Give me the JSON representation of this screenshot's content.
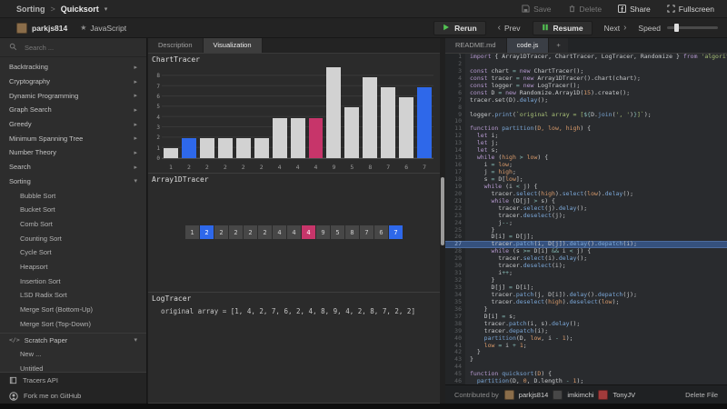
{
  "icons": {
    "caret_down": "▾",
    "chevron_right": "▸",
    "star": "★",
    "code_glyph": "</>",
    "plus": "+",
    "prev_chevron": "‹",
    "next_chevron": "›",
    "breadcrumb_sep": ">"
  },
  "header": {
    "breadcrumb": {
      "section": "Sorting",
      "sep": ">",
      "page": "Quicksort"
    },
    "actions": [
      {
        "label": "Save",
        "icon": "save",
        "disabled": true
      },
      {
        "label": "Delete",
        "icon": "trash",
        "disabled": true
      },
      {
        "label": "Share",
        "icon": "share",
        "disabled": false
      },
      {
        "label": "Fullscreen",
        "icon": "fullscreen",
        "disabled": false
      }
    ]
  },
  "toolbar": {
    "user": "parkjs814",
    "language": "JavaScript",
    "rerun": "Rerun",
    "prev": "Prev",
    "resume": "Resume",
    "next": "Next",
    "speed_label": "Speed"
  },
  "sidebar": {
    "search_placeholder": "Search ...",
    "sections": [
      {
        "label": "Backtracking",
        "expanded": false,
        "items": []
      },
      {
        "label": "Cryptography",
        "expanded": false,
        "items": []
      },
      {
        "label": "Dynamic Programming",
        "expanded": false,
        "items": []
      },
      {
        "label": "Graph Search",
        "expanded": false,
        "items": []
      },
      {
        "label": "Greedy",
        "expanded": false,
        "items": []
      },
      {
        "label": "Minimum Spanning Tree",
        "expanded": false,
        "items": []
      },
      {
        "label": "Number Theory",
        "expanded": false,
        "items": []
      },
      {
        "label": "Search",
        "expanded": false,
        "items": []
      },
      {
        "label": "Sorting",
        "expanded": true,
        "items": [
          "Bubble Sort",
          "Bucket Sort",
          "Comb Sort",
          "Counting Sort",
          "Cycle Sort",
          "Heapsort",
          "Insertion Sort",
          "LSD Radix Sort",
          "Merge Sort (Bottom-Up)",
          "Merge Sort (Top-Down)"
        ]
      },
      {
        "label": "Scratch Paper",
        "expanded": true,
        "icon": "code",
        "items": [
          "New ...",
          "Untitled"
        ]
      }
    ],
    "footer": [
      {
        "label": "Tracers API",
        "icon": "book"
      },
      {
        "label": "Fork me on GitHub",
        "icon": "github"
      }
    ]
  },
  "main": {
    "tabs": [
      {
        "label": "Description",
        "active": false
      },
      {
        "label": "Visualization",
        "active": true
      }
    ],
    "array": {
      "title": "Array1DTracer"
    },
    "log": {
      "title": "LogTracer",
      "text": "original array = [1, 4, 2, 7, 6, 2, 4, 8, 9, 4, 2, 8, 7, 2, 2]"
    }
  },
  "chart_data": {
    "type": "bar",
    "title": "ChartTracer",
    "categories": [
      "1",
      "2",
      "2",
      "2",
      "2",
      "2",
      "4",
      "4",
      "4",
      "9",
      "5",
      "8",
      "7",
      "6",
      "7"
    ],
    "values": [
      1,
      2,
      2,
      2,
      2,
      2,
      4,
      4,
      4,
      9,
      5,
      8,
      7,
      6,
      7
    ],
    "xlabel": "",
    "ylabel": "",
    "ylim": [
      0,
      9
    ],
    "yticks": [
      0,
      1,
      2,
      3,
      4,
      5,
      6,
      7,
      8
    ],
    "grid": true,
    "legend": false,
    "selected_indices": [
      1,
      14
    ],
    "patched_indices": [
      8
    ],
    "colors": {
      "default": "#d2d2d2",
      "selected": "#2e68ea",
      "patched": "#c7356a"
    }
  },
  "editor": {
    "tabs": [
      {
        "label": "README.md",
        "active": false
      },
      {
        "label": "code.js",
        "active": true
      }
    ],
    "highlight_line": 27,
    "lines": [
      [
        [
          "k",
          "import "
        ],
        [
          "p",
          "{ Array1DTracer, ChartTracer, LogTracer, Randomize } "
        ],
        [
          "k",
          "from "
        ],
        [
          "s",
          "'algorithm-visualizer'"
        ],
        [
          "p",
          ";"
        ]
      ],
      [],
      [
        [
          "k",
          "const "
        ],
        [
          "p",
          "chart "
        ],
        [
          "o",
          "= "
        ],
        [
          "k",
          "new "
        ],
        [
          "p",
          "ChartTracer();"
        ]
      ],
      [
        [
          "k",
          "const "
        ],
        [
          "p",
          "tracer "
        ],
        [
          "o",
          "= "
        ],
        [
          "k",
          "new "
        ],
        [
          "p",
          "Array1DTracer().chart(chart);"
        ]
      ],
      [
        [
          "k",
          "const "
        ],
        [
          "p",
          "logger "
        ],
        [
          "o",
          "= "
        ],
        [
          "k",
          "new "
        ],
        [
          "p",
          "LogTracer();"
        ]
      ],
      [
        [
          "k",
          "const "
        ],
        [
          "p",
          "D "
        ],
        [
          "o",
          "= "
        ],
        [
          "k",
          "new "
        ],
        [
          "p",
          "Randomize.Array1D("
        ],
        [
          "n",
          "15"
        ],
        [
          "p",
          ").create();"
        ]
      ],
      [
        [
          "p",
          "tracer.set(D)."
        ],
        [
          "f",
          "delay"
        ],
        [
          "p",
          "();"
        ]
      ],
      [],
      [
        [
          "p",
          "logger."
        ],
        [
          "f",
          "print"
        ],
        [
          "p",
          "("
        ],
        [
          "s",
          "`original array = ["
        ],
        [
          "o",
          "${"
        ],
        [
          "p",
          "D."
        ],
        [
          "f",
          "join"
        ],
        [
          "p",
          "("
        ],
        [
          "s",
          "', '"
        ],
        [
          "p",
          ")"
        ],
        [
          "o",
          "}"
        ],
        [
          "s",
          "]`"
        ],
        [
          "p",
          ");"
        ]
      ],
      [],
      [
        [
          "k",
          "function "
        ],
        [
          "f",
          "partition"
        ],
        [
          "p",
          "("
        ],
        [
          "n",
          "D, low, high"
        ],
        [
          "p",
          ") {"
        ]
      ],
      [
        [
          "p",
          "  "
        ],
        [
          "k",
          "let "
        ],
        [
          "p",
          "i;"
        ]
      ],
      [
        [
          "p",
          "  "
        ],
        [
          "k",
          "let "
        ],
        [
          "p",
          "j;"
        ]
      ],
      [
        [
          "p",
          "  "
        ],
        [
          "k",
          "let "
        ],
        [
          "p",
          "s;"
        ]
      ],
      [
        [
          "p",
          "  "
        ],
        [
          "k",
          "while "
        ],
        [
          "p",
          "("
        ],
        [
          "n",
          "high"
        ],
        [
          "o",
          " > "
        ],
        [
          "n",
          "low"
        ],
        [
          "p",
          ") {"
        ]
      ],
      [
        [
          "p",
          "    i "
        ],
        [
          "o",
          "= "
        ],
        [
          "n",
          "low"
        ],
        [
          "p",
          ";"
        ]
      ],
      [
        [
          "p",
          "    j "
        ],
        [
          "o",
          "= "
        ],
        [
          "n",
          "high"
        ],
        [
          "p",
          ";"
        ]
      ],
      [
        [
          "p",
          "    s "
        ],
        [
          "o",
          "= "
        ],
        [
          "p",
          "D["
        ],
        [
          "n",
          "low"
        ],
        [
          "p",
          "];"
        ]
      ],
      [
        [
          "p",
          "    "
        ],
        [
          "k",
          "while "
        ],
        [
          "p",
          "(i "
        ],
        [
          "o",
          "< "
        ],
        [
          "p",
          "j) {"
        ]
      ],
      [
        [
          "p",
          "      tracer."
        ],
        [
          "f",
          "select"
        ],
        [
          "p",
          "("
        ],
        [
          "n",
          "high"
        ],
        [
          "p",
          ")."
        ],
        [
          "f",
          "select"
        ],
        [
          "p",
          "("
        ],
        [
          "n",
          "low"
        ],
        [
          "p",
          ")."
        ],
        [
          "f",
          "delay"
        ],
        [
          "p",
          "();"
        ]
      ],
      [
        [
          "p",
          "      "
        ],
        [
          "k",
          "while "
        ],
        [
          "p",
          "(D[j] "
        ],
        [
          "o",
          "> "
        ],
        [
          "p",
          "s) {"
        ]
      ],
      [
        [
          "p",
          "        tracer."
        ],
        [
          "f",
          "select"
        ],
        [
          "p",
          "(j)."
        ],
        [
          "f",
          "delay"
        ],
        [
          "p",
          "();"
        ]
      ],
      [
        [
          "p",
          "        tracer."
        ],
        [
          "f",
          "deselect"
        ],
        [
          "p",
          "(j);"
        ]
      ],
      [
        [
          "p",
          "        j"
        ],
        [
          "o",
          "--"
        ],
        [
          "p",
          ";"
        ]
      ],
      [
        [
          "p",
          "      }"
        ]
      ],
      [
        [
          "p",
          "      D[i] "
        ],
        [
          "o",
          "= "
        ],
        [
          "p",
          "D[j];"
        ]
      ],
      [
        [
          "p",
          "      tracer."
        ],
        [
          "f",
          "patch"
        ],
        [
          "p",
          "(i, D[j])."
        ],
        [
          "f",
          "delay"
        ],
        [
          "p",
          "()."
        ],
        [
          "f",
          "depatch"
        ],
        [
          "p",
          "(i);"
        ]
      ],
      [
        [
          "p",
          "      "
        ],
        [
          "k",
          "while "
        ],
        [
          "p",
          "(s "
        ],
        [
          "o",
          ">= "
        ],
        [
          "p",
          "D[i] "
        ],
        [
          "o",
          "&& "
        ],
        [
          "p",
          "i "
        ],
        [
          "o",
          "< "
        ],
        [
          "p",
          "j) {"
        ]
      ],
      [
        [
          "p",
          "        tracer."
        ],
        [
          "f",
          "select"
        ],
        [
          "p",
          "(i)."
        ],
        [
          "f",
          "delay"
        ],
        [
          "p",
          "();"
        ]
      ],
      [
        [
          "p",
          "        tracer."
        ],
        [
          "f",
          "deselect"
        ],
        [
          "p",
          "(i);"
        ]
      ],
      [
        [
          "p",
          "        i"
        ],
        [
          "o",
          "++"
        ],
        [
          "p",
          ";"
        ]
      ],
      [
        [
          "p",
          "      }"
        ]
      ],
      [
        [
          "p",
          "      D[j] "
        ],
        [
          "o",
          "= "
        ],
        [
          "p",
          "D[i];"
        ]
      ],
      [
        [
          "p",
          "      tracer."
        ],
        [
          "f",
          "patch"
        ],
        [
          "p",
          "(j, D[i])."
        ],
        [
          "f",
          "delay"
        ],
        [
          "p",
          "()."
        ],
        [
          "f",
          "depatch"
        ],
        [
          "p",
          "(j);"
        ]
      ],
      [
        [
          "p",
          "      tracer."
        ],
        [
          "f",
          "deselect"
        ],
        [
          "p",
          "("
        ],
        [
          "n",
          "high"
        ],
        [
          "p",
          ")."
        ],
        [
          "f",
          "deselect"
        ],
        [
          "p",
          "("
        ],
        [
          "n",
          "low"
        ],
        [
          "p",
          ");"
        ]
      ],
      [
        [
          "p",
          "    }"
        ]
      ],
      [
        [
          "p",
          "    D[i] "
        ],
        [
          "o",
          "= "
        ],
        [
          "p",
          "s;"
        ]
      ],
      [
        [
          "p",
          "    tracer."
        ],
        [
          "f",
          "patch"
        ],
        [
          "p",
          "(i, s)."
        ],
        [
          "f",
          "delay"
        ],
        [
          "p",
          "();"
        ]
      ],
      [
        [
          "p",
          "    tracer."
        ],
        [
          "f",
          "depatch"
        ],
        [
          "p",
          "(i);"
        ]
      ],
      [
        [
          "p",
          "    "
        ],
        [
          "f",
          "partition"
        ],
        [
          "p",
          "(D, "
        ],
        [
          "n",
          "low"
        ],
        [
          "p",
          ", i "
        ],
        [
          "o",
          "- "
        ],
        [
          "n",
          "1"
        ],
        [
          "p",
          ");"
        ]
      ],
      [
        [
          "p",
          "    "
        ],
        [
          "n",
          "low"
        ],
        [
          "o",
          " = "
        ],
        [
          "p",
          "i "
        ],
        [
          "o",
          "+ "
        ],
        [
          "n",
          "1"
        ],
        [
          "p",
          ";"
        ]
      ],
      [
        [
          "p",
          "  }"
        ]
      ],
      [
        [
          "p",
          "}"
        ]
      ],
      [],
      [
        [
          "k",
          "function "
        ],
        [
          "f",
          "quicksort"
        ],
        [
          "p",
          "("
        ],
        [
          "n",
          "D"
        ],
        [
          "p",
          ") {"
        ]
      ],
      [
        [
          "p",
          "  "
        ],
        [
          "f",
          "partition"
        ],
        [
          "p",
          "(D, "
        ],
        [
          "n",
          "0"
        ],
        [
          "p",
          ", D.length "
        ],
        [
          "o",
          "- "
        ],
        [
          "n",
          "1"
        ],
        [
          "p",
          ");"
        ]
      ]
    ],
    "footer": {
      "contributed_label": "Contributed by",
      "contributors": [
        {
          "name": "parkjs814",
          "color": "#8a6d4a"
        },
        {
          "name": "imkimchi",
          "color": "#474747"
        },
        {
          "name": "TonyJV",
          "color": "#a23b3b"
        }
      ],
      "delete_label": "Delete File"
    }
  }
}
